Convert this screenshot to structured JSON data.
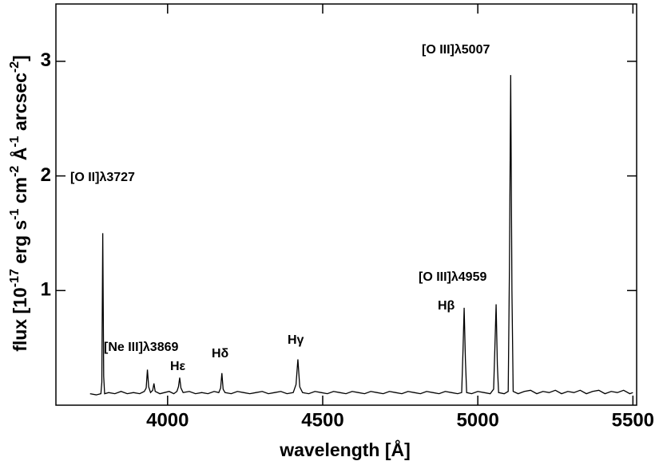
{
  "chart_data": {
    "type": "line",
    "y_label": [
      "flux  [10",
      "-17",
      " erg s",
      "-1",
      " cm",
      "-2",
      " Å",
      "-1",
      " arcsec",
      "-2",
      "]"
    ],
    "x_label": "wavelength [Å]",
    "annotations": [
      "[O II]λ3727",
      "[Ne III]λ3869",
      "Hε",
      "Hδ",
      "Hγ",
      "[O III]λ4959",
      "Hβ",
      "[O III]λ5007"
    ],
    "color": "#000000",
    "xlim": [
      3640,
      5512
    ],
    "xticks": [
      4000,
      4500,
      5000,
      5500
    ],
    "ylim": [
      0,
      3.5
    ],
    "yticks": [
      1,
      2,
      3
    ],
    "x": [
      3750,
      3770,
      3785,
      3788,
      3791,
      3794,
      3797,
      3810,
      3830,
      3850,
      3870,
      3890,
      3910,
      3925,
      3931,
      3935,
      3939,
      3945,
      3952,
      3956,
      3960,
      3975,
      3990,
      4005,
      4020,
      4030,
      4035,
      4039,
      4043,
      4050,
      4070,
      4090,
      4110,
      4130,
      4150,
      4165,
      4171,
      4175,
      4179,
      4185,
      4205,
      4225,
      4245,
      4265,
      4285,
      4305,
      4325,
      4345,
      4365,
      4385,
      4405,
      4414,
      4420,
      4426,
      4435,
      4455,
      4475,
      4495,
      4515,
      4535,
      4555,
      4575,
      4595,
      4615,
      4635,
      4655,
      4675,
      4695,
      4715,
      4735,
      4755,
      4775,
      4795,
      4815,
      4835,
      4855,
      4875,
      4895,
      4915,
      4935,
      4948,
      4952,
      4956,
      4960,
      4964,
      4980,
      5000,
      5020,
      5040,
      5051,
      5055,
      5059,
      5063,
      5067,
      5085,
      5098,
      5102,
      5106,
      5110,
      5114,
      5130,
      5150,
      5170,
      5190,
      5210,
      5230,
      5250,
      5270,
      5290,
      5310,
      5330,
      5350,
      5370,
      5390,
      5410,
      5430,
      5450,
      5470,
      5490,
      5500
    ],
    "values": [
      0.1,
      0.09,
      0.1,
      0.2,
      1.5,
      0.25,
      0.1,
      0.11,
      0.1,
      0.12,
      0.1,
      0.11,
      0.1,
      0.12,
      0.15,
      0.31,
      0.16,
      0.11,
      0.13,
      0.19,
      0.12,
      0.1,
      0.11,
      0.12,
      0.1,
      0.12,
      0.16,
      0.24,
      0.15,
      0.11,
      0.12,
      0.1,
      0.11,
      0.1,
      0.12,
      0.11,
      0.15,
      0.28,
      0.14,
      0.11,
      0.1,
      0.12,
      0.11,
      0.1,
      0.11,
      0.12,
      0.1,
      0.11,
      0.12,
      0.1,
      0.11,
      0.18,
      0.4,
      0.16,
      0.11,
      0.1,
      0.12,
      0.11,
      0.1,
      0.12,
      0.11,
      0.1,
      0.12,
      0.11,
      0.1,
      0.12,
      0.11,
      0.1,
      0.12,
      0.11,
      0.1,
      0.12,
      0.11,
      0.1,
      0.12,
      0.11,
      0.1,
      0.12,
      0.11,
      0.1,
      0.11,
      0.45,
      0.85,
      0.4,
      0.11,
      0.1,
      0.12,
      0.11,
      0.1,
      0.14,
      0.5,
      0.88,
      0.35,
      0.11,
      0.1,
      0.12,
      1.2,
      2.88,
      1.0,
      0.12,
      0.1,
      0.12,
      0.13,
      0.1,
      0.12,
      0.11,
      0.13,
      0.1,
      0.12,
      0.11,
      0.13,
      0.1,
      0.12,
      0.13,
      0.1,
      0.12,
      0.11,
      0.13,
      0.1,
      0.11
    ]
  }
}
